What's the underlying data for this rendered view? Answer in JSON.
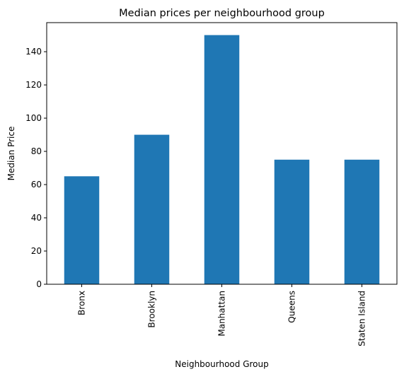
{
  "chart_data": {
    "type": "bar",
    "title": "Median prices per neighbourhood group",
    "xlabel": "Neighbourhood Group",
    "ylabel": "Median Price",
    "categories": [
      "Bronx",
      "Brooklyn",
      "Manhattan",
      "Queens",
      "Staten Island"
    ],
    "values": [
      65,
      90,
      150,
      75,
      75
    ],
    "ylim": [
      0,
      157.5
    ],
    "yticks": [
      0,
      20,
      40,
      60,
      80,
      100,
      120,
      140
    ],
    "grid": false,
    "legend": "none",
    "colors": {
      "bar": "#1f77b4",
      "axis": "#000000",
      "background": "#ffffff"
    }
  }
}
